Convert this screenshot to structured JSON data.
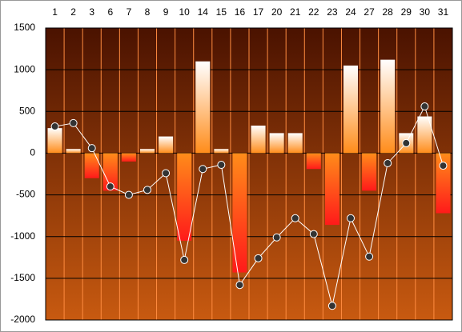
{
  "chart_data": {
    "type": "bar",
    "categories": [
      "1",
      "2",
      "3",
      "6",
      "7",
      "8",
      "9",
      "10",
      "14",
      "15",
      "16",
      "17",
      "20",
      "21",
      "22",
      "23",
      "24",
      "27",
      "28",
      "29",
      "30",
      "31"
    ],
    "series": [
      {
        "type": "bar",
        "values": [
          300,
          50,
          -300,
          -450,
          -100,
          50,
          200,
          -1050,
          1100,
          50,
          -1430,
          330,
          240,
          240,
          -190,
          -860,
          1050,
          -450,
          1120,
          240,
          440,
          -720
        ],
        "positive_gradient": [
          "#ffffff",
          "#ff8c1a"
        ],
        "negative_gradient": [
          "#ff8c1a",
          "#ff1a1a"
        ]
      },
      {
        "type": "line",
        "color": "#ffffff",
        "marker_color": "#333333",
        "values": [
          320,
          360,
          60,
          -400,
          -500,
          -440,
          -240,
          -1280,
          -190,
          -140,
          -1580,
          -1260,
          -1010,
          -780,
          -970,
          -1830,
          -780,
          -1240,
          -120,
          120,
          560,
          -150
        ]
      }
    ],
    "ylim": [
      -2000,
      1500
    ],
    "yticks": [
      1500,
      1000,
      500,
      0,
      -500,
      -1000,
      -1500,
      -2000
    ],
    "grid": true,
    "background_gradient": [
      "#4a1200",
      "#c85a10"
    ],
    "grid_color": "#000000",
    "separator_color": "#ff8c40"
  }
}
